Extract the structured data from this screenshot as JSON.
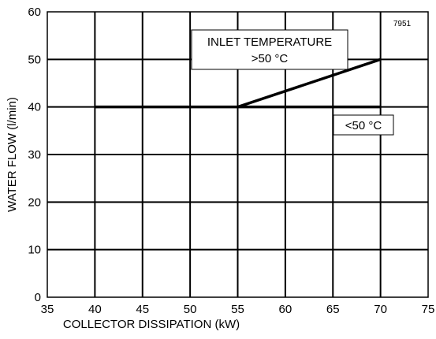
{
  "chart_data": {
    "type": "line",
    "xlabel": "COLLECTOR DISSIPATION (kW)",
    "ylabel": "WATER FLOW (l/min)",
    "xlim": [
      35,
      75
    ],
    "ylim": [
      0,
      60
    ],
    "xticks": [
      "35",
      "40",
      "45",
      "50",
      "55",
      "60",
      "65",
      "70",
      "75"
    ],
    "yticks": [
      "0",
      "10",
      "20",
      "30",
      "40",
      "50",
      "60"
    ],
    "grid": true,
    "figure_code": "7951",
    "series": [
      {
        "points": [
          [
            40,
            40
          ],
          [
            55,
            40
          ],
          [
            70,
            50
          ]
        ]
      },
      {
        "points": [
          [
            55,
            40
          ],
          [
            70,
            40
          ]
        ]
      }
    ],
    "annotations": [
      {
        "id": "high",
        "line1": "INLET TEMPERATURE",
        "line2": ">50 °C"
      },
      {
        "id": "low",
        "line1": "<50 °C"
      }
    ]
  }
}
